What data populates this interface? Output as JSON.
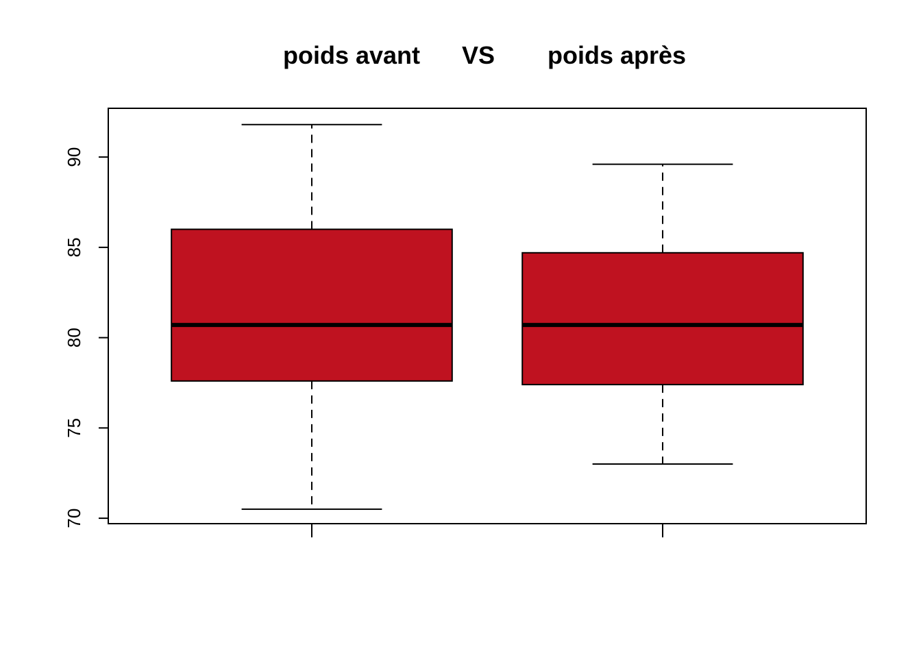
{
  "chart_data": {
    "type": "boxplot",
    "title": {
      "parts": [
        "poids avant",
        "VS",
        "poids après"
      ]
    },
    "xlabel": "",
    "ylabel": "",
    "ylim": [
      69.7,
      92.7
    ],
    "yticks": [
      70,
      75,
      80,
      85,
      90
    ],
    "grid": false,
    "legend": "none",
    "box_color": "#BF1220",
    "line_color": "#000000",
    "categories": [
      "",
      ""
    ],
    "boxes": [
      {
        "whisker_low": 70.5,
        "q1": 77.6,
        "median": 80.7,
        "q3": 86.0,
        "whisker_high": 91.8
      },
      {
        "whisker_low": 73.0,
        "q1": 77.4,
        "median": 80.7,
        "q3": 84.7,
        "whisker_high": 89.6
      }
    ]
  }
}
